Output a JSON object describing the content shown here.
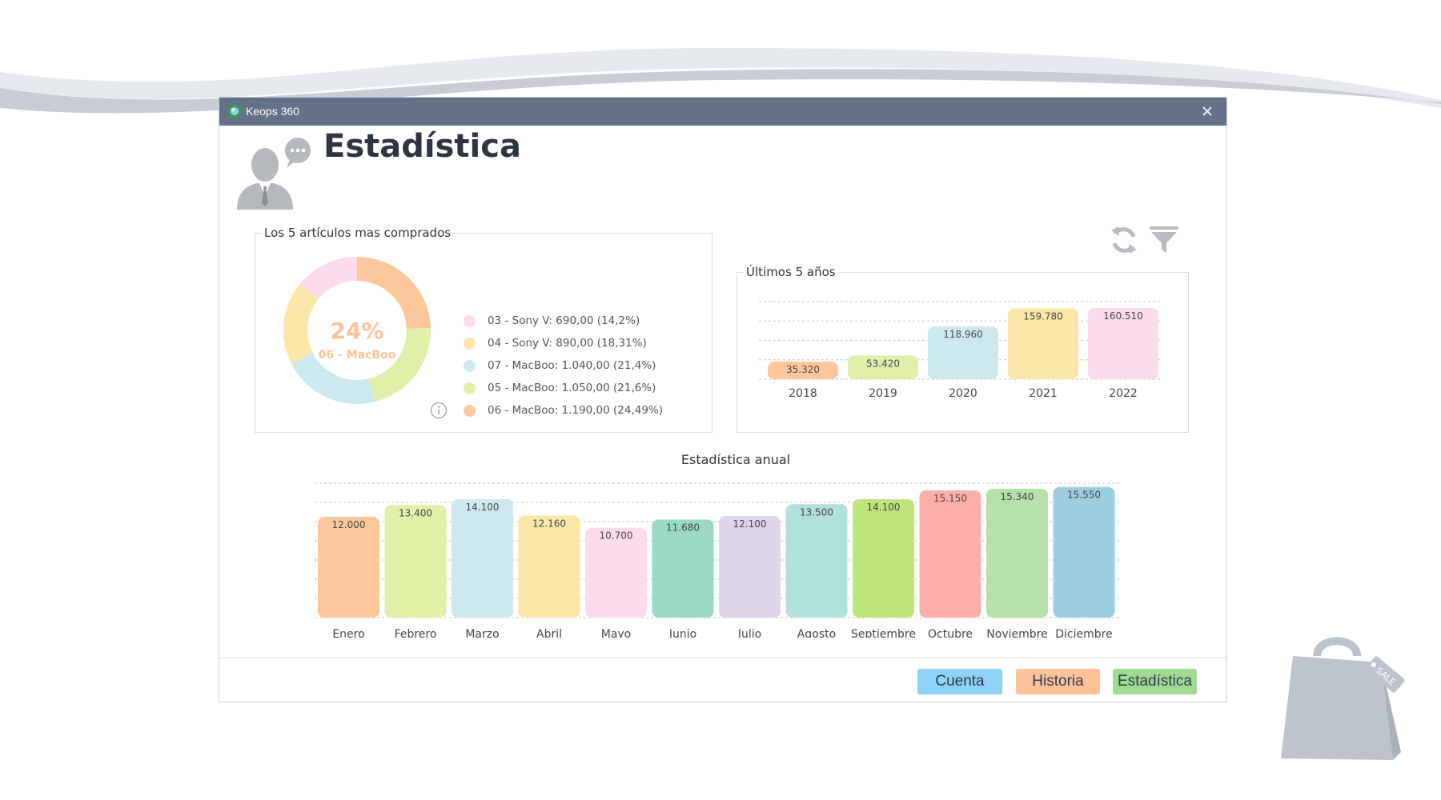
{
  "window": {
    "app_title": "Keops 360"
  },
  "page": {
    "title": "Estadística"
  },
  "top5": {
    "group_title": "Los 5 artículos mas comprados",
    "center_percent": "24%",
    "center_label": "06 - MacBoo",
    "legend": [
      {
        "label": "03 - Sony V: 690,00 (14,2%)",
        "color": "#fcdcec"
      },
      {
        "label": "04 - Sony V: 890,00 (18,31%)",
        "color": "#fde7a8"
      },
      {
        "label": "07 - MacBoo: 1.040,00 (21,4%)",
        "color": "#cce9f0"
      },
      {
        "label": "05 - MacBoo: 1.050,00 (21,6%)",
        "color": "#dff1a9"
      },
      {
        "label": "06 - MacBoo: 1.190,00 (24,49%)",
        "color": "#fec799"
      }
    ]
  },
  "chart_data": [
    {
      "type": "pie",
      "title": "Los 5 artículos mas comprados",
      "categories": [
        "06 - MacBoo",
        "05 - MacBoo",
        "07 - MacBoo",
        "04 - Sony V",
        "03 - Sony V"
      ],
      "values": [
        1190,
        1050,
        1040,
        890,
        690
      ],
      "percent": [
        24.49,
        21.6,
        21.4,
        18.31,
        14.2
      ],
      "colors": [
        "#fec799",
        "#dff1a9",
        "#cce9f0",
        "#fde7a8",
        "#fcdcec"
      ]
    },
    {
      "type": "bar",
      "title": "Últimos 5 años",
      "categories": [
        "2018",
        "2019",
        "2020",
        "2021",
        "2022"
      ],
      "values": [
        35320,
        53420,
        118960,
        159780,
        160510
      ],
      "value_labels": [
        "35.320",
        "53.420",
        "118.960",
        "159.780",
        "160.510"
      ],
      "colors": [
        "#fec799",
        "#dff1a9",
        "#cce9f0",
        "#fde7a8",
        "#fcdcec"
      ],
      "ylim": [
        0,
        175000
      ],
      "grid": true
    },
    {
      "type": "bar",
      "title": "Estadística anual",
      "categories": [
        "Enero",
        "Febrero",
        "Marzo",
        "Abril",
        "Mayo",
        "Junio",
        "Julio",
        "Agosto",
        "Septiembre",
        "Octubre",
        "Noviembre",
        "Diciembre"
      ],
      "values": [
        12000,
        13400,
        14100,
        12160,
        10700,
        11680,
        12100,
        13500,
        14100,
        15150,
        15340,
        15550
      ],
      "value_labels": [
        "12.000",
        "13.400",
        "14.100",
        "12.160",
        "10.700",
        "11.680",
        "12.100",
        "13.500",
        "14.100",
        "15.150",
        "15.340",
        "15.550"
      ],
      "colors": [
        "#fec799",
        "#dff1a9",
        "#cce9f0",
        "#fde7a8",
        "#fcdcec",
        "#9bd9c6",
        "#ddd5e9",
        "#b2e0dc",
        "#bde57a",
        "#feb0a8",
        "#b4e2a9",
        "#9ccde0"
      ],
      "ylim": [
        0,
        16000
      ],
      "grid": true
    }
  ],
  "years": {
    "group_title": "Últimos 5 años"
  },
  "annual": {
    "title": "Estadística anual"
  },
  "footer": {
    "cuenta_label": "Cuenta",
    "historia_label": "Historia",
    "estadistica_label": "Estadística"
  },
  "decor": {
    "sale_tag": "SALE"
  },
  "colors": {
    "titlebar": "#637189",
    "accent_blue": "#8ed2f8",
    "accent_orange": "#fec199",
    "accent_green": "#9fdc92"
  }
}
